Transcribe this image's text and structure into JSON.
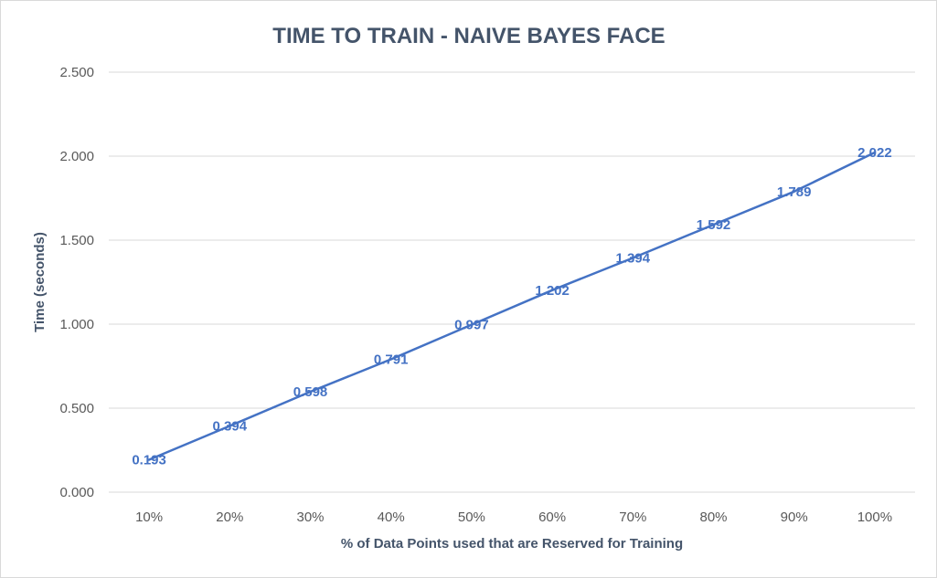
{
  "chart_data": {
    "type": "line",
    "title": "TIME TO TRAIN - NAIVE BAYES FACE",
    "xlabel": "% of Data Points used that are Reserved for Training",
    "ylabel": "Time (seconds)",
    "categories": [
      "10%",
      "20%",
      "30%",
      "40%",
      "50%",
      "60%",
      "70%",
      "80%",
      "90%",
      "100%"
    ],
    "series": [
      {
        "values": [
          0.193,
          0.394,
          0.598,
          0.791,
          0.997,
          1.202,
          1.394,
          1.592,
          1.789,
          2.022
        ],
        "labels": [
          "0.193",
          "0.394",
          "0.598",
          "0.791",
          "0.997",
          "1.202",
          "1.394",
          "1.592",
          "1.789",
          "2.022"
        ],
        "color": "#4472c4"
      }
    ],
    "ylim": [
      0,
      2.5
    ],
    "yticks": [
      "0.000",
      "0.500",
      "1.000",
      "1.500",
      "2.000",
      "2.500"
    ],
    "ytick_values": [
      0,
      0.5,
      1,
      1.5,
      2,
      2.5
    ],
    "grid": true,
    "legend": "none"
  }
}
